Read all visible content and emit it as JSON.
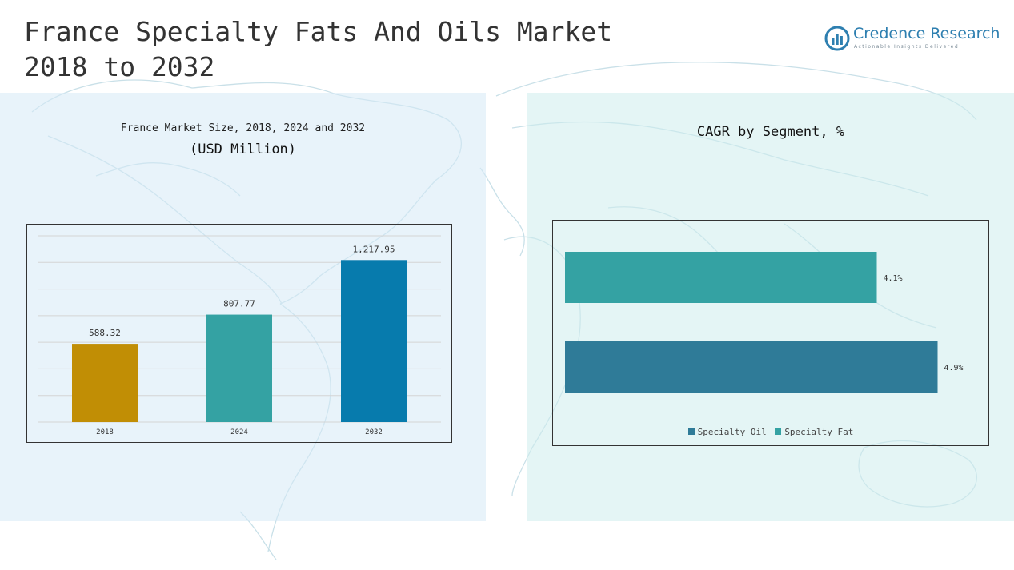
{
  "header": {
    "title_line1": "France Specialty Fats And Oils Market",
    "title_line2": "2018 to 2032"
  },
  "logo": {
    "name": "Credence Research",
    "tagline": "Actionable Insights Delivered",
    "icon": "bar-chart-circle-icon",
    "color": "#2e7fb0"
  },
  "chart_data": [
    {
      "type": "bar",
      "title": "France Market Size, 2018, 2024 and 2032",
      "subtitle": "(USD Million)",
      "categories": [
        "2018",
        "2024",
        "2032"
      ],
      "values": [
        588.32,
        807.77,
        1217.95
      ],
      "value_labels": [
        "588.32",
        "807.77",
        "1,217.95"
      ],
      "colors": [
        "#c18e05",
        "#34a2a3",
        "#077bad"
      ],
      "ylim": [
        0,
        1400
      ],
      "grid": true,
      "xlabel": "",
      "ylabel": ""
    },
    {
      "type": "bar",
      "orientation": "horizontal",
      "title": "CAGR by Segment, %",
      "series": [
        {
          "name": "Specialty Oil",
          "value": 4.9,
          "label": "4.9%",
          "color": "#2f7b98"
        },
        {
          "name": "Specialty Fat",
          "value": 4.1,
          "label": "4.1%",
          "color": "#34a2a3"
        }
      ],
      "xlim": [
        0,
        5.2
      ],
      "grid": false,
      "legend_position": "bottom"
    }
  ]
}
